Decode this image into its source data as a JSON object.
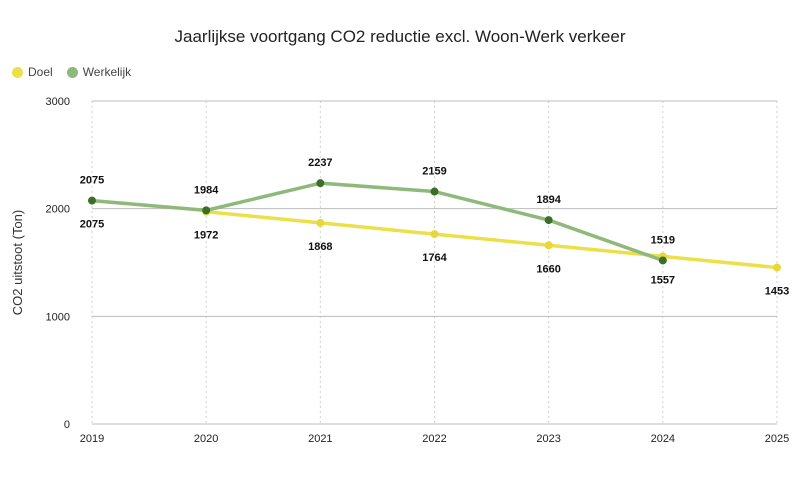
{
  "chart_data": {
    "type": "line",
    "title": "Jaarlijkse voortgang CO2 reductie excl. Woon-Werk verkeer",
    "ylabel": "CO2 uitstoot (Ton)",
    "xlabel": "",
    "ylim": [
      0,
      3000
    ],
    "yticks": [
      0,
      1000,
      2000,
      3000
    ],
    "x": [
      "2019",
      "2020",
      "2021",
      "2022",
      "2023",
      "2024",
      "2025"
    ],
    "legend_position": "top-left",
    "series": [
      {
        "name": "Doel",
        "color": "#ece04a",
        "marker_color": "#e6d83a",
        "label_position": "below",
        "values": [
          null,
          1972,
          1868,
          1764,
          1660,
          1557,
          1453
        ]
      },
      {
        "name": "Werkelijk",
        "color": "#8fb97a",
        "marker_color": "#3c6e2a",
        "label_position": "above",
        "values": [
          2075,
          1984,
          2237,
          2159,
          1894,
          1519,
          null
        ]
      }
    ],
    "data_labels": [
      {
        "series": "Werkelijk",
        "x": "2019",
        "text": "2075",
        "position": "above"
      },
      {
        "series": "Werkelijk",
        "x": "2019",
        "text": "2075",
        "position": "below"
      },
      {
        "series": "Werkelijk",
        "x": "2020",
        "text": "1984",
        "position": "above"
      },
      {
        "series": "Doel",
        "x": "2020",
        "text": "1972",
        "position": "below"
      },
      {
        "series": "Werkelijk",
        "x": "2021",
        "text": "2237",
        "position": "above"
      },
      {
        "series": "Doel",
        "x": "2021",
        "text": "1868",
        "position": "below"
      },
      {
        "series": "Werkelijk",
        "x": "2022",
        "text": "2159",
        "position": "above"
      },
      {
        "series": "Doel",
        "x": "2022",
        "text": "1764",
        "position": "below"
      },
      {
        "series": "Werkelijk",
        "x": "2023",
        "text": "1894",
        "position": "above"
      },
      {
        "series": "Doel",
        "x": "2023",
        "text": "1660",
        "position": "below"
      },
      {
        "series": "Werkelijk",
        "x": "2024",
        "text": "1519",
        "position": "above"
      },
      {
        "series": "Doel",
        "x": "2024",
        "text": "1557",
        "position": "below"
      },
      {
        "series": "Doel",
        "x": "2025",
        "text": "1453",
        "position": "below"
      }
    ],
    "colors": {
      "grid_major": "#bdbdbd",
      "grid_minor": "#cfcfcf"
    }
  }
}
